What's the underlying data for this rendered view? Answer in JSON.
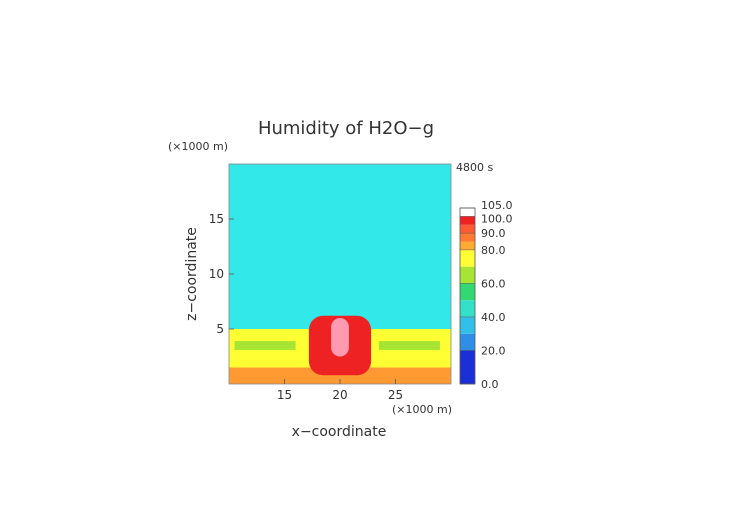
{
  "chart_data": {
    "type": "heatmap",
    "title": "Humidity of H2O−g",
    "time_label": "4800 s",
    "xlabel": "x−coordinate",
    "ylabel": "z−coordinate",
    "x_unit": "(×1000 m)",
    "z_unit": "(×1000 m)",
    "xlim": [
      10,
      30
    ],
    "zlim": [
      0,
      20
    ],
    "x_ticks": [
      15,
      20,
      25
    ],
    "z_ticks": [
      5,
      10,
      15
    ],
    "grid": false,
    "legend": "colorbar-right",
    "colorbar": {
      "range": [
        0,
        105
      ],
      "labels": [
        "105.0",
        "100.0",
        "90.0",
        "80.0",
        "60.0",
        "40.0",
        "20.0",
        "0.0"
      ],
      "label_values": [
        105,
        100,
        90,
        80,
        60,
        40,
        20,
        0
      ],
      "bands": [
        {
          "from": 0,
          "to": 20,
          "color": "#1a2fd6"
        },
        {
          "from": 20,
          "to": 30,
          "color": "#2f8fe6"
        },
        {
          "from": 30,
          "to": 40,
          "color": "#33c0e8"
        },
        {
          "from": 40,
          "to": 50,
          "color": "#33e0c8"
        },
        {
          "from": 50,
          "to": 60,
          "color": "#33d873"
        },
        {
          "from": 60,
          "to": 70,
          "color": "#a8e433"
        },
        {
          "from": 70,
          "to": 80,
          "color": "#ffff33"
        },
        {
          "from": 80,
          "to": 85,
          "color": "#ffaa33"
        },
        {
          "from": 85,
          "to": 90,
          "color": "#ff7a33"
        },
        {
          "from": 90,
          "to": 95,
          "color": "#ff5a33"
        },
        {
          "from": 95,
          "to": 100,
          "color": "#ee2222"
        },
        {
          "from": 100,
          "to": 105,
          "color": "#ffffff"
        }
      ]
    },
    "field_regions": [
      {
        "name": "upper-air",
        "value": 45,
        "color": "#33e8e8",
        "x": [
          10,
          30
        ],
        "z": [
          5,
          20
        ]
      },
      {
        "name": "boundary-layer",
        "value": 75,
        "color": "#ffff33",
        "x": [
          10,
          30
        ],
        "z": [
          0,
          5
        ]
      },
      {
        "name": "moist-band-left",
        "value": 65,
        "color": "#a8e433",
        "x": [
          10.5,
          16
        ],
        "z": [
          3.1,
          3.9
        ]
      },
      {
        "name": "moist-band-right",
        "value": 65,
        "color": "#a8e433",
        "x": [
          23.5,
          29
        ],
        "z": [
          3.1,
          3.9
        ]
      },
      {
        "name": "near-surface",
        "value": 85,
        "color": "#ff9a33",
        "x": [
          10,
          30
        ],
        "z": [
          0,
          1.5
        ]
      },
      {
        "name": "cloud-column",
        "value": 97,
        "color": "#ee2222",
        "x": [
          17.2,
          22.8
        ],
        "z": [
          0.8,
          6.2
        ]
      },
      {
        "name": "cloud-core",
        "value": 102,
        "color": "#ff9ab0",
        "x": [
          19.2,
          20.8
        ],
        "z": [
          2.5,
          6.0
        ]
      }
    ]
  }
}
